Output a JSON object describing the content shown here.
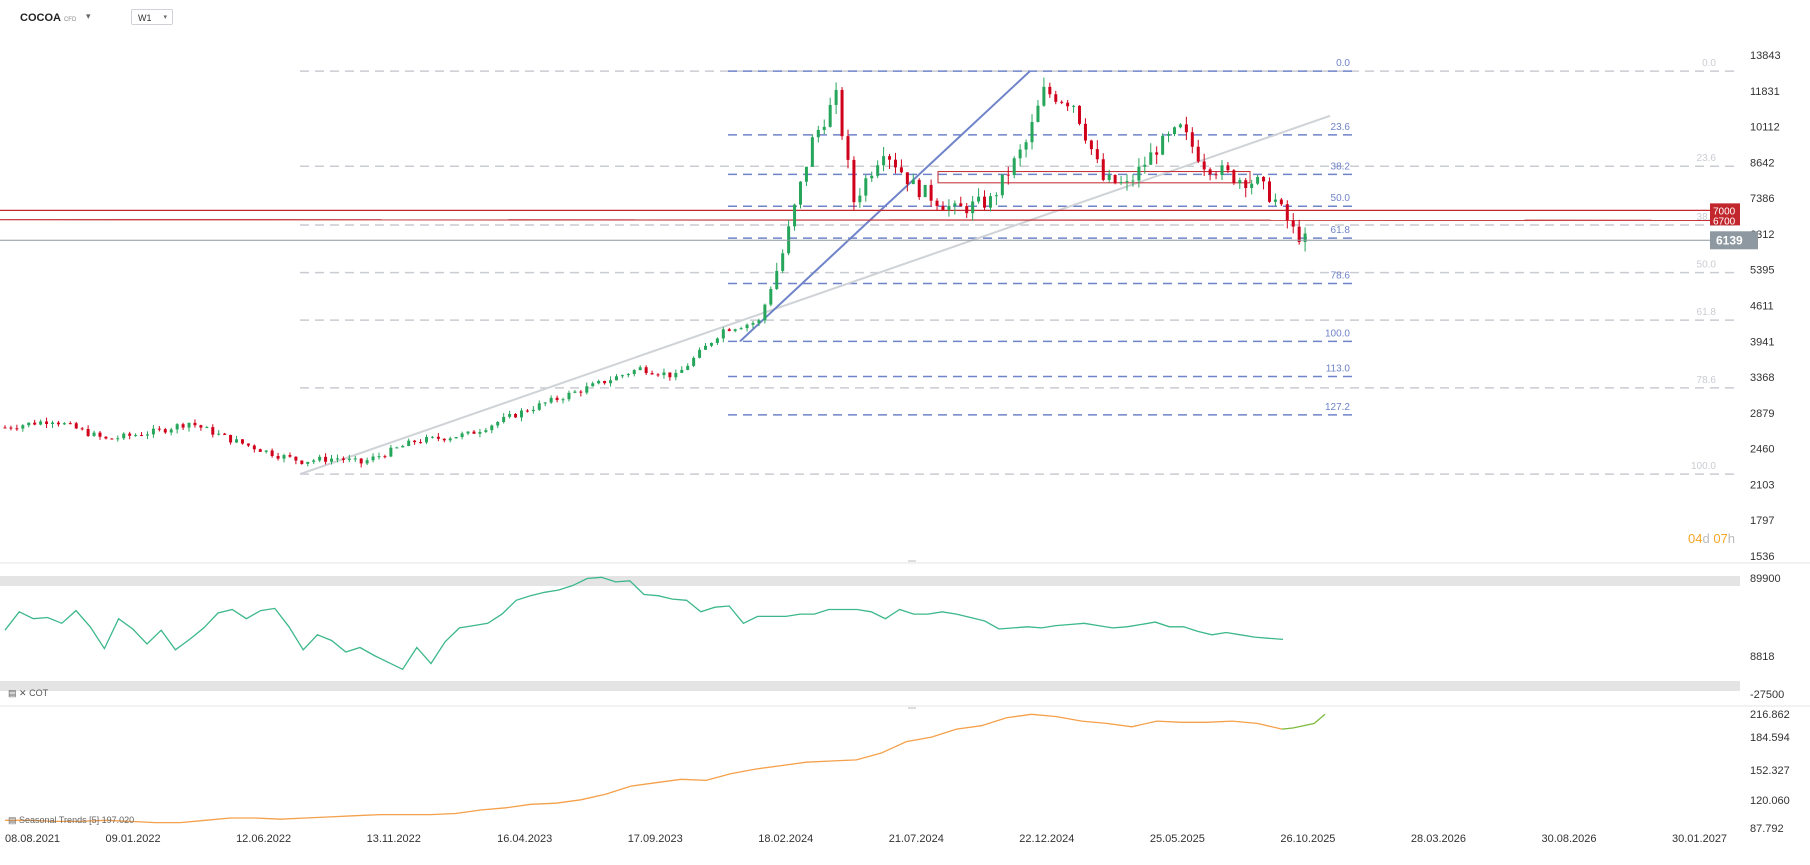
{
  "header": {
    "symbol": "COCOA",
    "instrument_type": "CFD",
    "timeframe": "W1"
  },
  "countdown": {
    "days": "04",
    "d": "d",
    "hours": "07",
    "h": "h"
  },
  "colors": {
    "up": "#26a65b",
    "down": "#d0021b",
    "fib_main": "#6f83c9",
    "fib_secondary": "#c9ccd2",
    "cot": "#3cb88a",
    "seasonal": "#f5a04a",
    "seasonal_forecast": "#7dbb3c",
    "resistance": "#c1272d",
    "price_tag": "#8d98a0"
  },
  "chart_data": [
    {
      "type": "candlestick",
      "title": "COCOA",
      "xlabel": "",
      "ylabel": "",
      "x_tick_labels": [
        "08.08.2021",
        "09.01.2022",
        "12.06.2022",
        "13.11.2022",
        "16.04.2023",
        "17.09.2023",
        "18.02.2024",
        "21.07.2024",
        "22.12.2024",
        "25.05.2025",
        "26.10.2025",
        "28.03.2026",
        "30.08.2026",
        "30.01.2027"
      ],
      "y_tick_labels": [
        "13843",
        "11831",
        "10112",
        "8642",
        "7386",
        "6312",
        "5395",
        "4611",
        "3941",
        "3368",
        "2879",
        "2460",
        "2103",
        "1797",
        "1536"
      ],
      "y_scale": "log",
      "last_price": 6139,
      "price_tags": [
        7000,
        6700
      ],
      "weekly_close_anchors": [
        {
          "date": "2021-08-08",
          "close": 2700
        },
        {
          "date": "2021-10-03",
          "close": 2790
        },
        {
          "date": "2021-12-05",
          "close": 2560
        },
        {
          "date": "2022-02-06",
          "close": 2660
        },
        {
          "date": "2022-03-13",
          "close": 2760
        },
        {
          "date": "2022-05-01",
          "close": 2560
        },
        {
          "date": "2022-06-26",
          "close": 2390
        },
        {
          "date": "2022-07-24",
          "close": 2330
        },
        {
          "date": "2022-09-04",
          "close": 2360
        },
        {
          "date": "2022-10-02",
          "close": 2310
        },
        {
          "date": "2022-12-04",
          "close": 2540
        },
        {
          "date": "2023-02-05",
          "close": 2620
        },
        {
          "date": "2023-04-16",
          "close": 2920
        },
        {
          "date": "2023-06-18",
          "close": 3180
        },
        {
          "date": "2023-08-27",
          "close": 3500
        },
        {
          "date": "2023-10-08",
          "close": 3380
        },
        {
          "date": "2023-12-03",
          "close": 4150
        },
        {
          "date": "2024-01-14",
          "close": 4300
        },
        {
          "date": "2024-02-11",
          "close": 5800
        },
        {
          "date": "2024-03-17",
          "close": 9500
        },
        {
          "date": "2024-04-14",
          "close": 11500
        },
        {
          "date": "2024-05-05",
          "close": 7300
        },
        {
          "date": "2024-06-09",
          "close": 9200
        },
        {
          "date": "2024-07-14",
          "close": 7800
        },
        {
          "date": "2024-09-01",
          "close": 7000
        },
        {
          "date": "2024-10-13",
          "close": 7300
        },
        {
          "date": "2024-11-24",
          "close": 9400
        },
        {
          "date": "2024-12-15",
          "close": 11800
        },
        {
          "date": "2025-01-19",
          "close": 11200
        },
        {
          "date": "2025-02-23",
          "close": 8000
        },
        {
          "date": "2025-03-23",
          "close": 7800
        },
        {
          "date": "2025-04-27",
          "close": 9200
        },
        {
          "date": "2025-05-25",
          "close": 10000
        },
        {
          "date": "2025-06-22",
          "close": 8600
        },
        {
          "date": "2025-07-27",
          "close": 8100
        },
        {
          "date": "2025-08-24",
          "close": 7900
        },
        {
          "date": "2025-09-14",
          "close": 7300
        },
        {
          "date": "2025-10-05",
          "close": 6400
        },
        {
          "date": "2025-10-19",
          "close": 6139
        }
      ],
      "fib_retracement_1": {
        "levels": [
          "0.0",
          "23.6",
          "38.2",
          "50.0",
          "61.8",
          "78.6",
          "100.0",
          "113.0",
          "127.2"
        ],
        "high": 12900,
        "low": 3940
      },
      "fib_retracement_2": {
        "levels": [
          "0.0",
          "23.6",
          "38.2",
          "50.0",
          "61.8",
          "78.6",
          "100.0"
        ],
        "high": 12900,
        "low": 2200
      }
    },
    {
      "type": "line",
      "title": "COT",
      "y_tick_labels": [
        "89900",
        "8818",
        "-27500"
      ],
      "series": [
        {
          "values": [
            0.52,
            0.68,
            0.62,
            0.63,
            0.58,
            0.69,
            0.55,
            0.36,
            0.62,
            0.53,
            0.4,
            0.52,
            0.35,
            0.44,
            0.54,
            0.67,
            0.7,
            0.62,
            0.69,
            0.71,
            0.55,
            0.35,
            0.48,
            0.43,
            0.33,
            0.37,
            0.3,
            0.24,
            0.18,
            0.37,
            0.23,
            0.42,
            0.54,
            0.56,
            0.58,
            0.66,
            0.78,
            0.82,
            0.85,
            0.87,
            0.91,
            0.97,
            0.98,
            0.94,
            0.95,
            0.83,
            0.82,
            0.79,
            0.78,
            0.68,
            0.72,
            0.73,
            0.58,
            0.64,
            0.64,
            0.64,
            0.66,
            0.66,
            0.7,
            0.7,
            0.7,
            0.68,
            0.62,
            0.7,
            0.66,
            0.66,
            0.68,
            0.66,
            0.63,
            0.6,
            0.53,
            0.54,
            0.55,
            0.54,
            0.56,
            0.57,
            0.58,
            0.56,
            0.54,
            0.55,
            0.57,
            0.59,
            0.55,
            0.55,
            0.51,
            0.48,
            0.5,
            0.48,
            0.46,
            0.45,
            0.44
          ]
        }
      ]
    },
    {
      "type": "line",
      "title": "Seasonal Trends",
      "legend": "Seasonal  Trends  [5]  197.020",
      "y_tick_labels": [
        "216.862",
        "184.594",
        "152.327",
        "120.060",
        "87.792"
      ],
      "series": [
        {
          "values": [
            0.05,
            0.05,
            0.04,
            0.04,
            0.05,
            0.04,
            0.03,
            0.03,
            0.05,
            0.07,
            0.07,
            0.06,
            0.07,
            0.08,
            0.09,
            0.1,
            0.1,
            0.1,
            0.11,
            0.14,
            0.16,
            0.19,
            0.2,
            0.23,
            0.28,
            0.35,
            0.38,
            0.41,
            0.4,
            0.46,
            0.5,
            0.53,
            0.56,
            0.57,
            0.58,
            0.64,
            0.74,
            0.78,
            0.85,
            0.88,
            0.95,
            0.98,
            0.96,
            0.92,
            0.9,
            0.87,
            0.92,
            0.91,
            0.91,
            0.92,
            0.9,
            0.85
          ]
        },
        {
          "values": [
            0.85,
            0.86,
            0.88,
            0.9,
            0.98
          ]
        }
      ]
    }
  ]
}
